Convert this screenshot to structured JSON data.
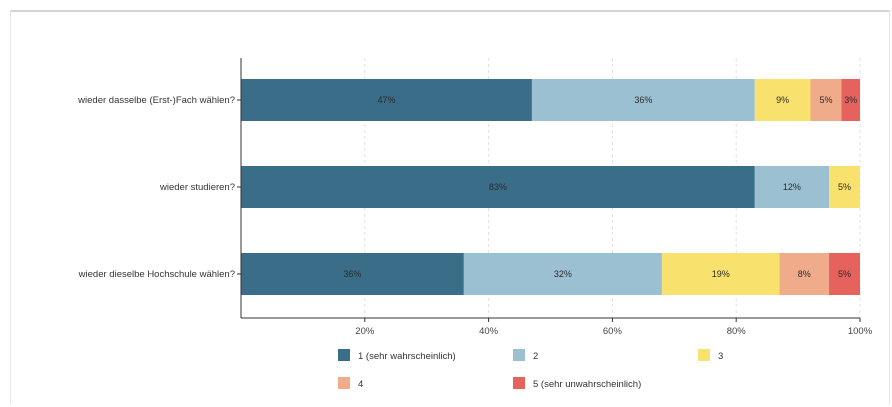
{
  "chart_data": {
    "type": "bar",
    "orientation": "horizontal",
    "stacked": true,
    "categories": [
      "wieder dasselbe (Erst-)Fach wählen?",
      "wieder studieren?",
      "wieder dieselbe Hochschule wählen?"
    ],
    "series": [
      {
        "name": "1 (sehr wahrscheinlich)",
        "color": "#3a6d88",
        "values": [
          47,
          83,
          36
        ],
        "labels": [
          "47%",
          "83%",
          "36%"
        ]
      },
      {
        "name": "2",
        "color": "#9ac0d1",
        "values": [
          36,
          12,
          32
        ],
        "labels": [
          "36%",
          "12%",
          "32%"
        ]
      },
      {
        "name": "3",
        "color": "#f8e16c",
        "values": [
          9,
          5,
          19
        ],
        "labels": [
          "9%",
          "5%",
          "19%"
        ]
      },
      {
        "name": "4",
        "color": "#f0ab8b",
        "values": [
          5,
          0,
          8
        ],
        "labels": [
          "5%",
          "",
          "8%"
        ]
      },
      {
        "name": "5 (sehr unwahrscheinlich)",
        "color": "#e5625d",
        "values": [
          3,
          0,
          5
        ],
        "labels": [
          "3%",
          "",
          "5%"
        ]
      }
    ],
    "xlim": [
      0,
      100
    ],
    "xticks": [
      20,
      40,
      60,
      80,
      100
    ],
    "xtick_labels": [
      "20%",
      "40%",
      "60%",
      "80%",
      "100%"
    ],
    "grid": "vertical dashed",
    "legend_position": "bottom"
  }
}
